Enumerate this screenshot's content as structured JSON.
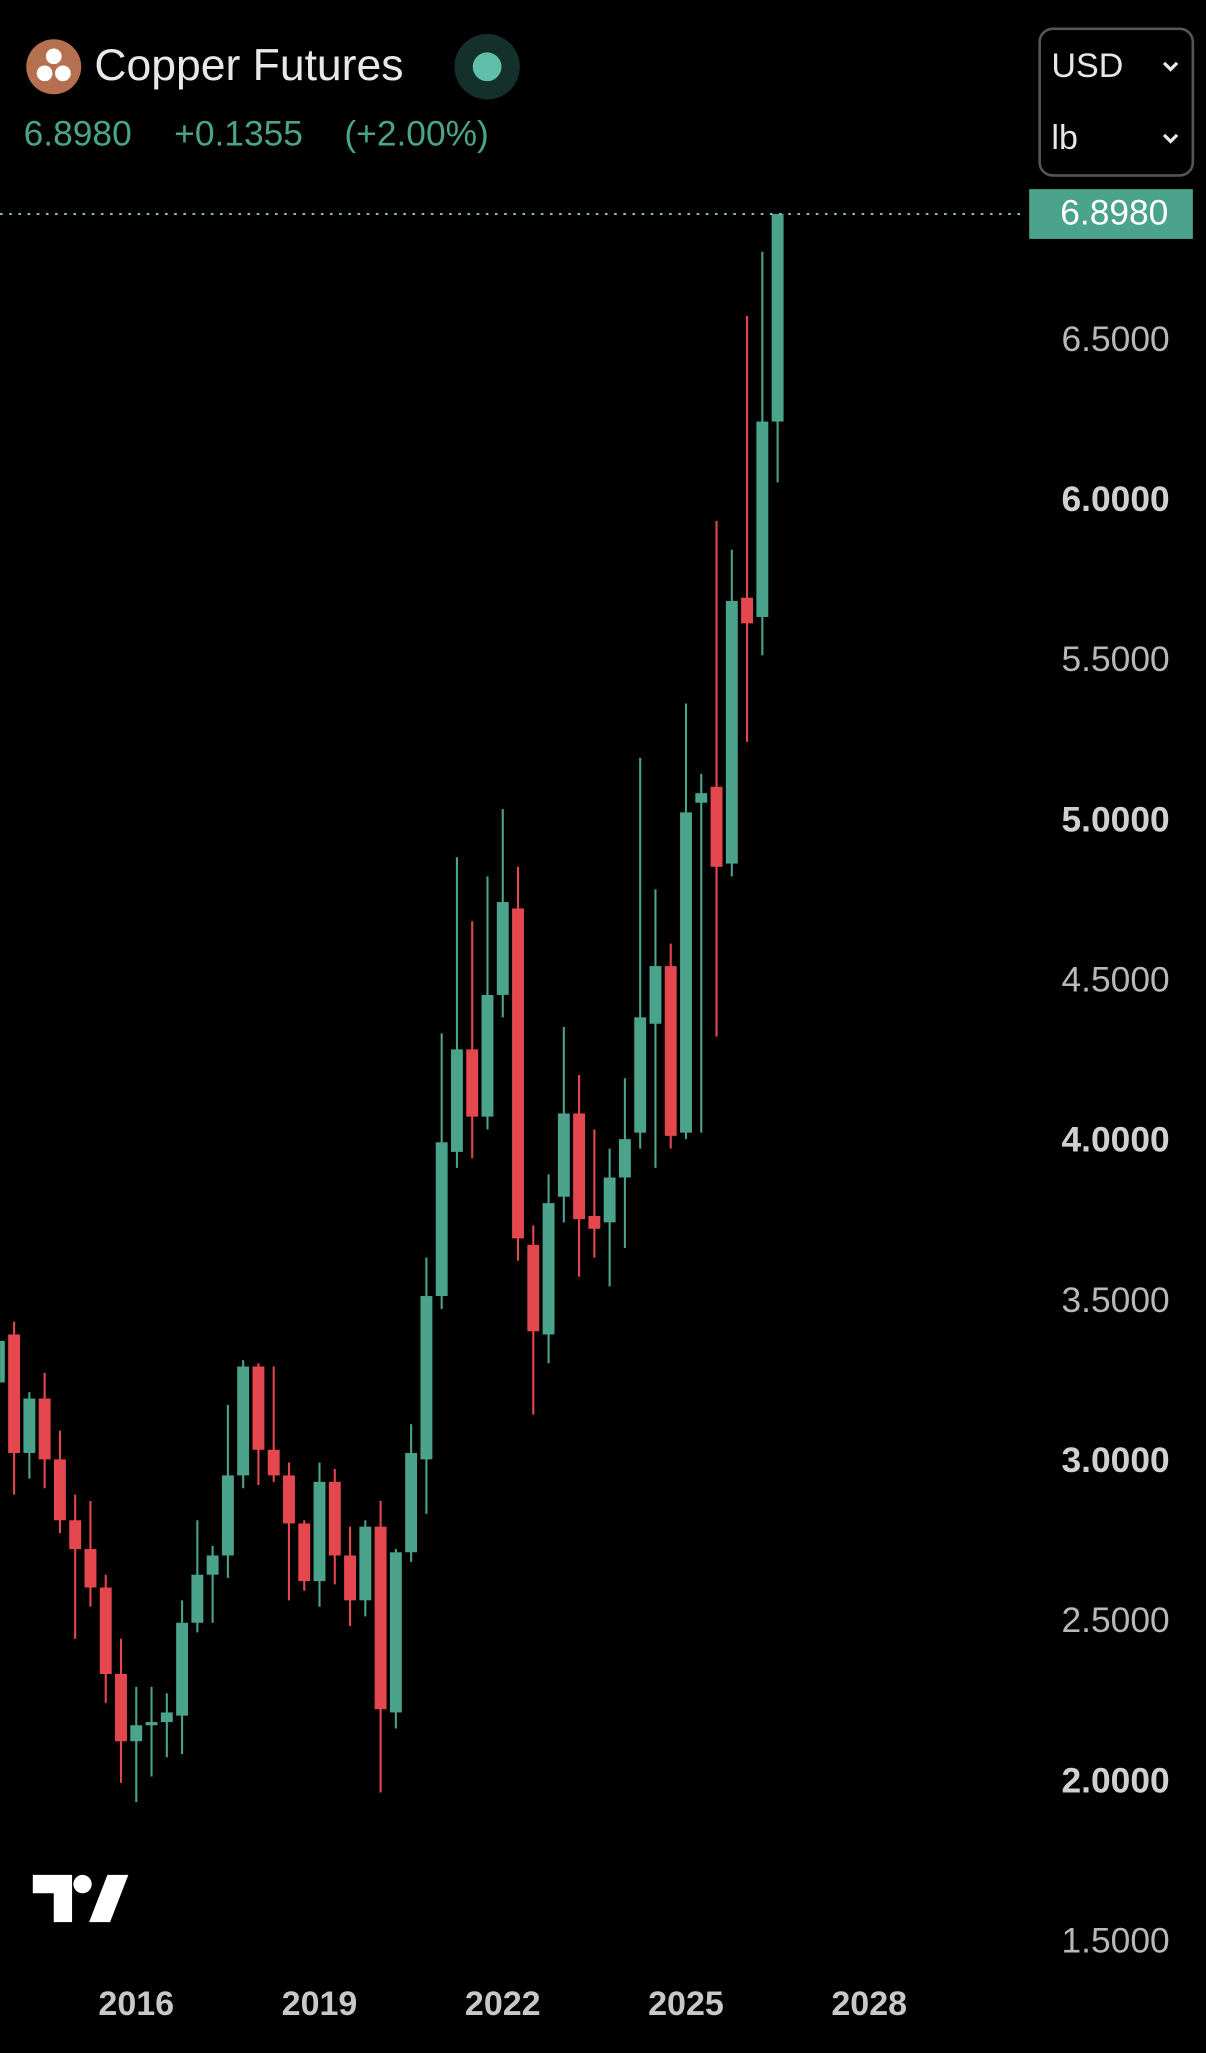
{
  "chart_data": {
    "type": "candlestick",
    "title": "Copper Futures",
    "last_price": {
      "value": 6.898,
      "label": "6.8980"
    },
    "change": "+0.1355",
    "change_pct": "(+2.00%)",
    "currency": "USD",
    "unit": "lb",
    "up_color": "#4aa38a",
    "down_color": "#e5474f",
    "x": [
      2013.75,
      2014,
      2014.25,
      2014.5,
      2014.75,
      2015,
      2015.25,
      2015.5,
      2015.75,
      2016,
      2016.25,
      2016.5,
      2016.75,
      2017,
      2017.25,
      2017.5,
      2017.75,
      2018,
      2018.25,
      2018.5,
      2018.75,
      2019,
      2019.25,
      2019.5,
      2019.75,
      2020,
      2020.25,
      2020.5,
      2020.75,
      2021,
      2021.25,
      2021.5,
      2021.75,
      2022,
      2022.25,
      2022.5,
      2022.75,
      2023,
      2023.25,
      2023.5,
      2023.75,
      2024,
      2024.25,
      2024.5,
      2024.75,
      2025,
      2025.25,
      2025.5,
      2025.75,
      2026,
      2026.25,
      2026.5
    ],
    "open": [
      3.25,
      3.4,
      3.03,
      3.2,
      3.01,
      2.82,
      2.73,
      2.61,
      2.34,
      2.13,
      2.18,
      2.19,
      2.21,
      2.5,
      2.65,
      2.71,
      2.96,
      3.3,
      3.04,
      2.96,
      2.81,
      2.63,
      2.94,
      2.71,
      2.57,
      2.8,
      2.22,
      2.72,
      3.01,
      3.52,
      3.97,
      4.29,
      4.08,
      4.46,
      4.73,
      3.68,
      3.4,
      3.83,
      4.09,
      3.77,
      3.75,
      3.89,
      4.03,
      4.37,
      4.55,
      4.03,
      5.06,
      5.11,
      4.87,
      5.7,
      5.64,
      6.25
    ],
    "high": [
      3.42,
      3.44,
      3.22,
      3.28,
      3.1,
      2.9,
      2.88,
      2.65,
      2.45,
      2.3,
      2.3,
      2.28,
      2.57,
      2.82,
      2.74,
      3.18,
      3.32,
      3.31,
      3.3,
      3.0,
      2.82,
      3.0,
      2.98,
      2.8,
      2.82,
      2.88,
      2.73,
      3.12,
      3.64,
      4.34,
      4.89,
      4.69,
      4.83,
      5.04,
      4.86,
      3.74,
      3.9,
      4.36,
      4.21,
      4.04,
      3.98,
      4.2,
      5.2,
      4.79,
      4.62,
      5.37,
      5.15,
      5.94,
      5.85,
      6.58,
      6.78,
      6.898
    ],
    "low": [
      3.05,
      2.9,
      2.95,
      2.92,
      2.78,
      2.45,
      2.55,
      2.25,
      2.0,
      1.94,
      2.02,
      2.08,
      2.09,
      2.47,
      2.5,
      2.64,
      2.92,
      2.93,
      2.94,
      2.57,
      2.6,
      2.55,
      2.62,
      2.49,
      2.52,
      1.97,
      2.17,
      2.69,
      2.84,
      3.48,
      3.92,
      3.95,
      4.04,
      4.39,
      3.63,
      3.15,
      3.31,
      3.75,
      3.58,
      3.64,
      3.55,
      3.67,
      3.98,
      3.92,
      3.98,
      4.01,
      4.03,
      4.33,
      4.83,
      5.25,
      5.52,
      6.06
    ],
    "close": [
      3.38,
      3.03,
      3.2,
      3.01,
      2.82,
      2.73,
      2.61,
      2.34,
      2.13,
      2.18,
      2.19,
      2.22,
      2.5,
      2.65,
      2.71,
      2.96,
      3.3,
      3.04,
      2.96,
      2.81,
      2.63,
      2.94,
      2.71,
      2.57,
      2.8,
      2.23,
      2.72,
      3.03,
      3.52,
      4.0,
      4.29,
      4.08,
      4.46,
      4.75,
      3.7,
      3.41,
      3.81,
      4.09,
      3.76,
      3.73,
      3.89,
      4.01,
      4.39,
      4.55,
      4.02,
      5.03,
      5.09,
      4.86,
      5.69,
      5.62,
      6.25,
      6.898
    ],
    "xlim": [
      2013.77,
      2030.49
    ],
    "xticks": [
      2016,
      2019,
      2022,
      2025,
      2028
    ],
    "ylim": [
      1.4,
      7.0
    ],
    "yticks": [
      {
        "value": 1.5,
        "label": "1.5000"
      },
      {
        "value": 2,
        "label": "2.0000"
      },
      {
        "value": 2.5,
        "label": "2.5000"
      },
      {
        "value": 3,
        "label": "3.0000"
      },
      {
        "value": 3.5,
        "label": "3.5000"
      },
      {
        "value": 4,
        "label": "4.0000"
      },
      {
        "value": 4.5,
        "label": "4.5000"
      },
      {
        "value": 5,
        "label": "5.0000"
      },
      {
        "value": 5.5,
        "label": "5.5000"
      },
      {
        "value": 6,
        "label": "6.0000"
      },
      {
        "value": 6.5,
        "label": "6.5000"
      }
    ]
  }
}
